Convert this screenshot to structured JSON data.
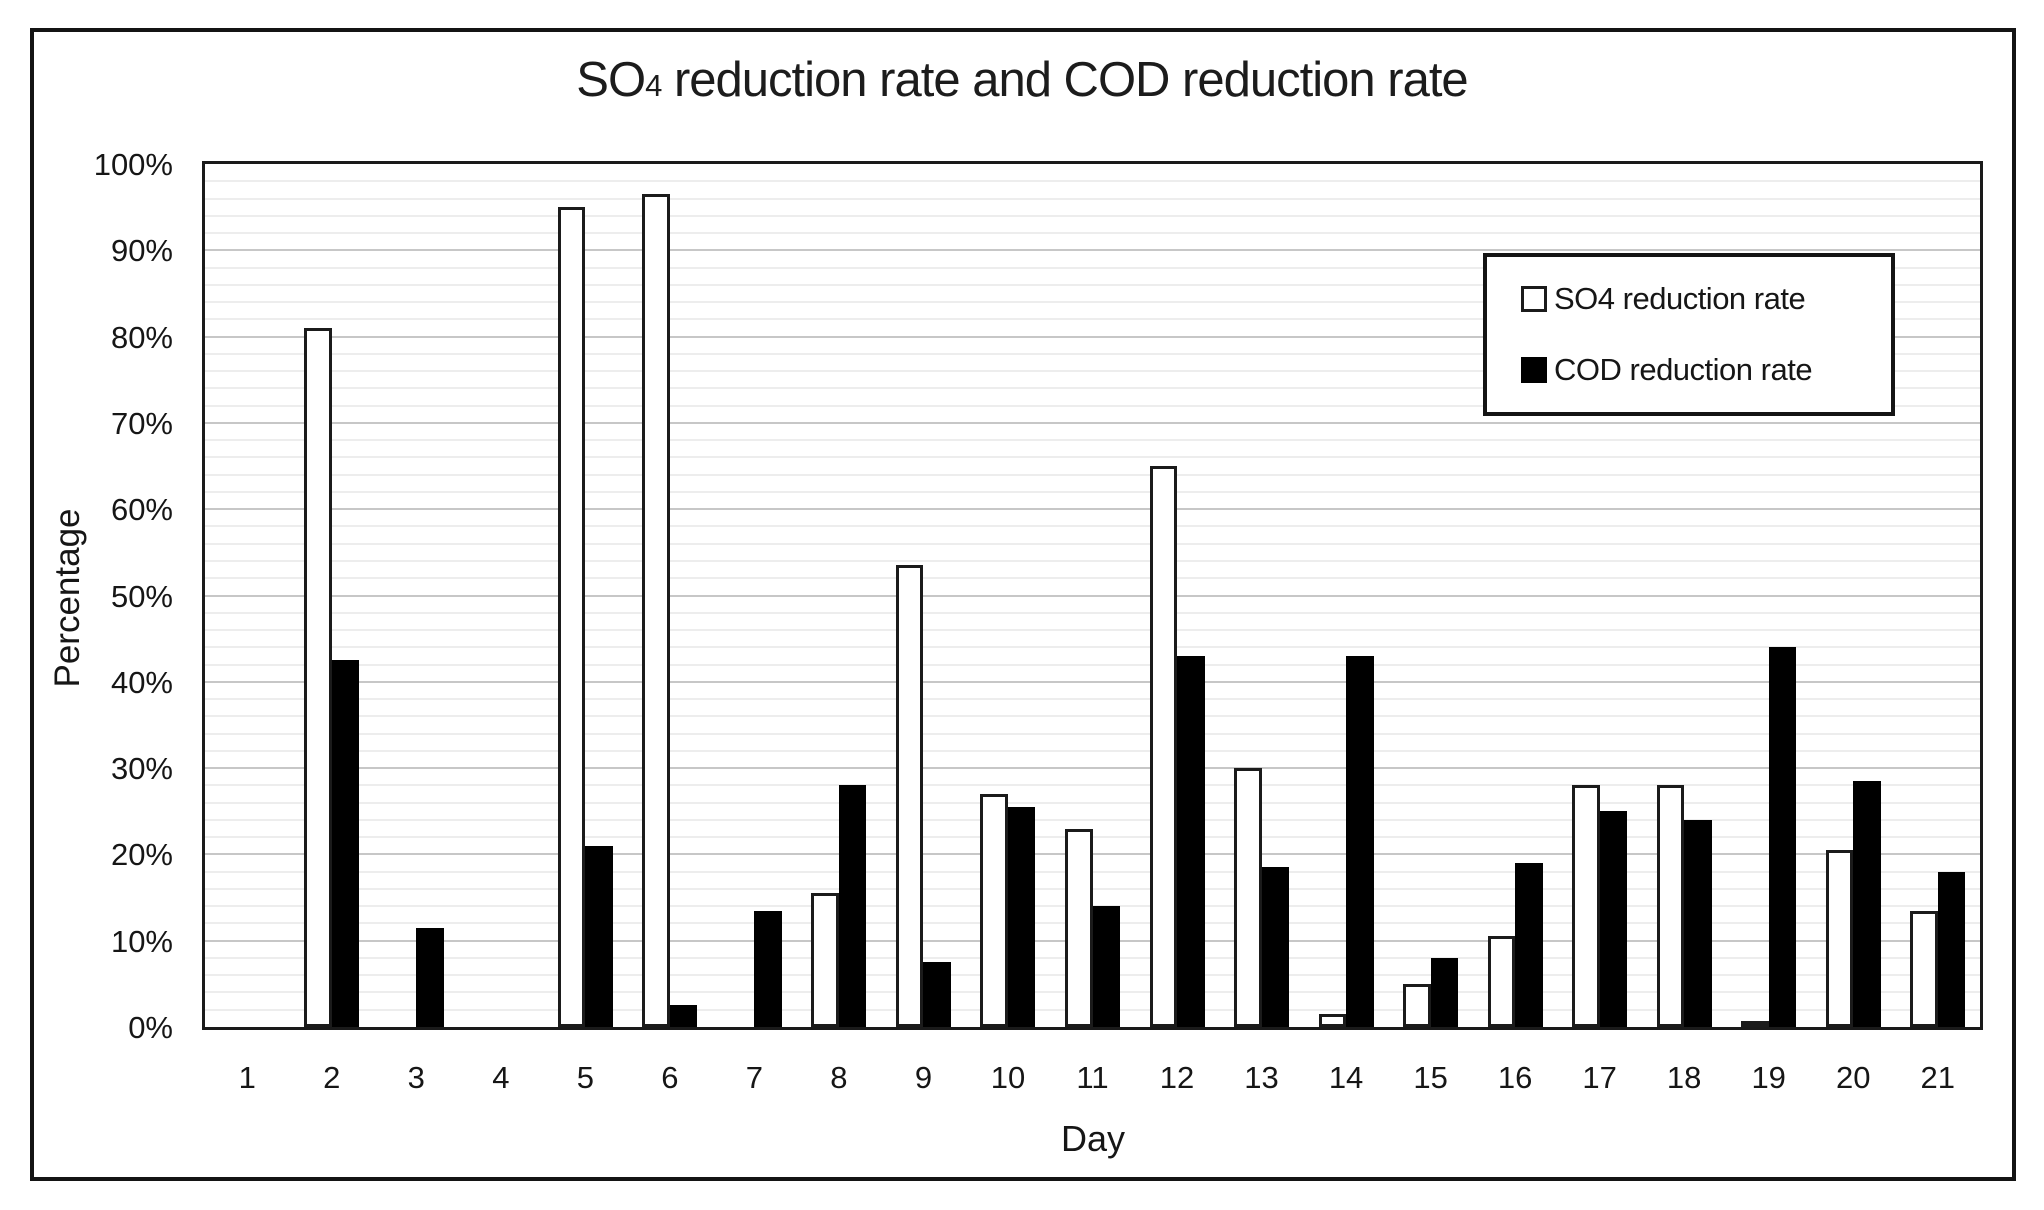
{
  "figure": {
    "title_prefix": "SO",
    "title_sub": "4",
    "title_rest": " reduction rate and COD reduction rate"
  },
  "chart_data": {
    "type": "bar",
    "title": "SO4 reduction rate and COD reduction rate",
    "xlabel": "Day",
    "ylabel": "Percentage",
    "categories": [
      "1",
      "2",
      "3",
      "4",
      "5",
      "6",
      "7",
      "8",
      "9",
      "10",
      "11",
      "12",
      "13",
      "14",
      "15",
      "16",
      "17",
      "18",
      "19",
      "20",
      "21"
    ],
    "series": [
      {
        "name": "SO4 reduction rate",
        "fill": "white",
        "values": [
          0,
          81,
          0,
          0,
          95,
          96.5,
          0,
          15.5,
          53.5,
          27,
          23,
          65,
          30,
          1.5,
          5,
          10.5,
          28,
          28,
          0.5,
          20.5,
          13.5
        ]
      },
      {
        "name": "COD reduction rate",
        "fill": "black",
        "values": [
          0,
          42.5,
          11.5,
          0,
          21,
          2.5,
          13.5,
          28,
          7.5,
          25.5,
          14,
          43,
          18.5,
          43,
          8,
          19,
          25,
          24,
          44,
          28.5,
          18
        ]
      }
    ],
    "ylim": [
      0,
      100
    ],
    "y_major_step": 10,
    "y_minor_step": 2,
    "y_tick_labels": [
      "0%",
      "10%",
      "20%",
      "30%",
      "40%",
      "50%",
      "60%",
      "70%",
      "80%",
      "90%",
      "100%"
    ],
    "grid": "horizontal-only",
    "legend_position": "top-right"
  },
  "colors": {
    "bar_outline": "#1b1b1b",
    "bar_fill_cod": "#000000",
    "bar_fill_so4": "#ffffff",
    "major_grid": "#c7c7c7",
    "minor_grid": "#ededed",
    "axis": "#1a1a1a",
    "text": "#161616"
  }
}
